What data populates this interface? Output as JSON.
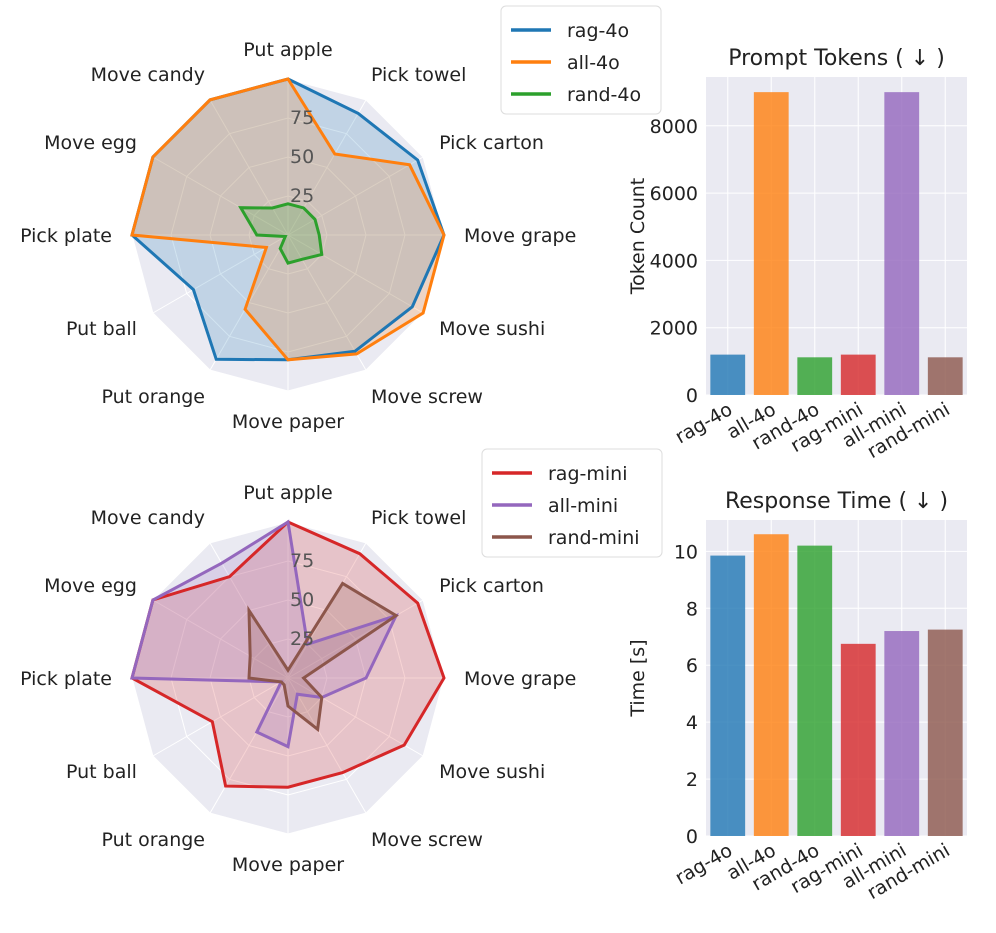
{
  "chart_data": [
    {
      "type": "radar",
      "categories": [
        "Put apple",
        "Pick towel",
        "Pick carton",
        "Move grape",
        "Move sushi",
        "Move screw",
        "Move paper",
        "Put orange",
        "Put ball",
        "Pick plate",
        "Move egg",
        "Move candy"
      ],
      "rlim": [
        0,
        100
      ],
      "rticks": [
        25,
        50,
        75
      ],
      "rtick_labels": [
        "25",
        "50",
        "75"
      ],
      "legend_position": "upper-right",
      "series": [
        {
          "name": "rag-4o",
          "color": "#1f77b4",
          "values": [
            100,
            90,
            96,
            100,
            92,
            86,
            80,
            92,
            70,
            100,
            100,
            100
          ]
        },
        {
          "name": "all-4o",
          "color": "#ff7f0e",
          "values": [
            100,
            60,
            90,
            100,
            100,
            88,
            80,
            55,
            16,
            100,
            100,
            100
          ]
        },
        {
          "name": "rand-4o",
          "color": "#2ca02c",
          "values": [
            20,
            20,
            20,
            20,
            25,
            18,
            18,
            10,
            2,
            20,
            35,
            20
          ]
        }
      ]
    },
    {
      "type": "bar",
      "title": "Prompt Tokens ( ↓ )",
      "ylabel": "Token Count",
      "categories": [
        "rag-4o",
        "all-4o",
        "rand-4o",
        "rag-mini",
        "all-mini",
        "rand-mini"
      ],
      "values": [
        1200,
        9000,
        1120,
        1200,
        9000,
        1120
      ],
      "colors": [
        "#1f77b4",
        "#ff7f0e",
        "#2ca02c",
        "#d62728",
        "#9467bd",
        "#8c564b"
      ],
      "ylim": [
        0,
        9450
      ],
      "yticks": [
        0,
        2000,
        4000,
        6000,
        8000
      ],
      "grid": true
    },
    {
      "type": "radar",
      "categories": [
        "Put apple",
        "Pick towel",
        "Pick carton",
        "Move grape",
        "Move sushi",
        "Move screw",
        "Move paper",
        "Put orange",
        "Put ball",
        "Pick plate",
        "Move egg",
        "Move candy"
      ],
      "rlim": [
        0,
        100
      ],
      "rticks": [
        25,
        50,
        75
      ],
      "rtick_labels": [
        "25",
        "50",
        "75"
      ],
      "legend_position": "upper-right",
      "series": [
        {
          "name": "rag-mini",
          "color": "#d62728",
          "values": [
            100,
            92,
            96,
            100,
            86,
            70,
            70,
            80,
            56,
            100,
            100,
            75
          ]
        },
        {
          "name": "all-mini",
          "color": "#9467bd",
          "values": [
            100,
            25,
            80,
            50,
            25,
            12,
            44,
            40,
            5,
            100,
            100,
            85
          ]
        },
        {
          "name": "rand-mini",
          "color": "#8c564b",
          "values": [
            5,
            70,
            80,
            10,
            25,
            38,
            18,
            5,
            5,
            25,
            28,
            50
          ]
        }
      ]
    },
    {
      "type": "bar",
      "title": "Response Time ( ↓ )",
      "ylabel": "Time [s]",
      "categories": [
        "rag-4o",
        "all-4o",
        "rand-4o",
        "rag-mini",
        "all-mini",
        "rand-mini"
      ],
      "values": [
        9.85,
        10.6,
        10.2,
        6.75,
        7.2,
        7.25
      ],
      "colors": [
        "#1f77b4",
        "#ff7f0e",
        "#2ca02c",
        "#d62728",
        "#9467bd",
        "#8c564b"
      ],
      "ylim": [
        0,
        11.1
      ],
      "yticks": [
        0,
        2,
        4,
        6,
        8,
        10
      ],
      "grid": true
    }
  ]
}
